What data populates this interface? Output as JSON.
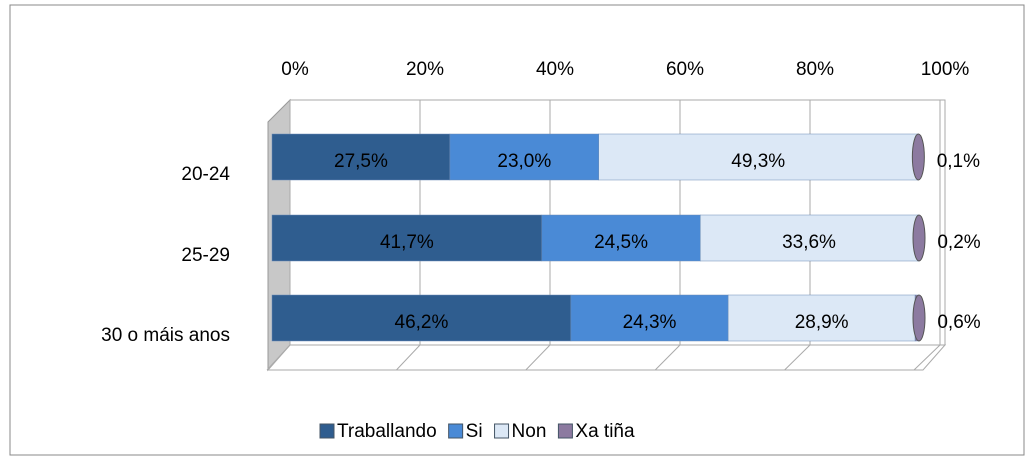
{
  "chart_data": {
    "type": "bar",
    "orientation": "horizontal",
    "stacked": true,
    "categories": [
      "20-24",
      "25-29",
      "30 o máis anos"
    ],
    "series": [
      {
        "name": "Traballando",
        "color": "#2f5d8f",
        "values": [
          27.5,
          41.7,
          46.2
        ],
        "value_labels": [
          "27,5%",
          "41,7%",
          "46,2%"
        ]
      },
      {
        "name": "Si",
        "color": "#4a8ad6",
        "values": [
          23.0,
          24.5,
          24.3
        ],
        "value_labels": [
          "23,0%",
          "24,5%",
          "24,3%"
        ]
      },
      {
        "name": "Non",
        "color": "#dce8f6",
        "values": [
          49.3,
          33.6,
          28.9
        ],
        "value_labels": [
          "49,3%",
          "33,6%",
          "28,9%"
        ]
      },
      {
        "name": "Xa tiña",
        "color": "#8c7aa0",
        "values": [
          0.1,
          0.2,
          0.6
        ],
        "value_labels": [
          "0,1%",
          "0,2%",
          "0,6%"
        ]
      }
    ],
    "xlim": [
      0,
      100
    ],
    "xticks": [
      {
        "value": 0,
        "label": "0%"
      },
      {
        "value": 20,
        "label": "20%"
      },
      {
        "value": 40,
        "label": "40%"
      },
      {
        "value": 60,
        "label": "60%"
      },
      {
        "value": 80,
        "label": "80%"
      },
      {
        "value": 100,
        "label": "100%"
      }
    ],
    "grid": true,
    "legend": "bottom"
  }
}
